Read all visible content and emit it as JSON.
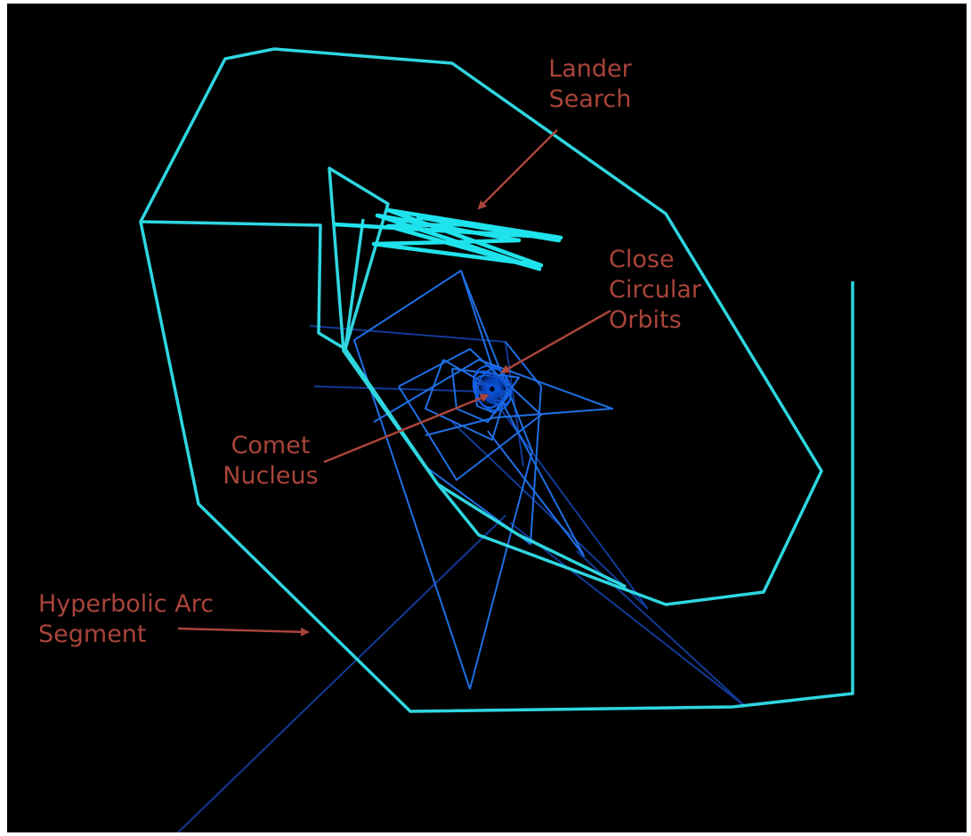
{
  "labels": {
    "lander_search": "Lander\nSearch",
    "close_circular_orbits": "Close\nCircular\nOrbits",
    "comet_nucleus": "Comet\nNucleus",
    "hyperbolic_arc_segment": "Hyperbolic Arc\nSegment"
  },
  "colors": {
    "background": "#000000",
    "outer_trajectory": "#2fd6e0",
    "lander_search_trajectory": "#1fe3ec",
    "inner_orbits": "#1d6fe0",
    "dark_orbits": "#143d9c",
    "nucleus": "#0a4bd8",
    "annotation": "#a9443b"
  }
}
